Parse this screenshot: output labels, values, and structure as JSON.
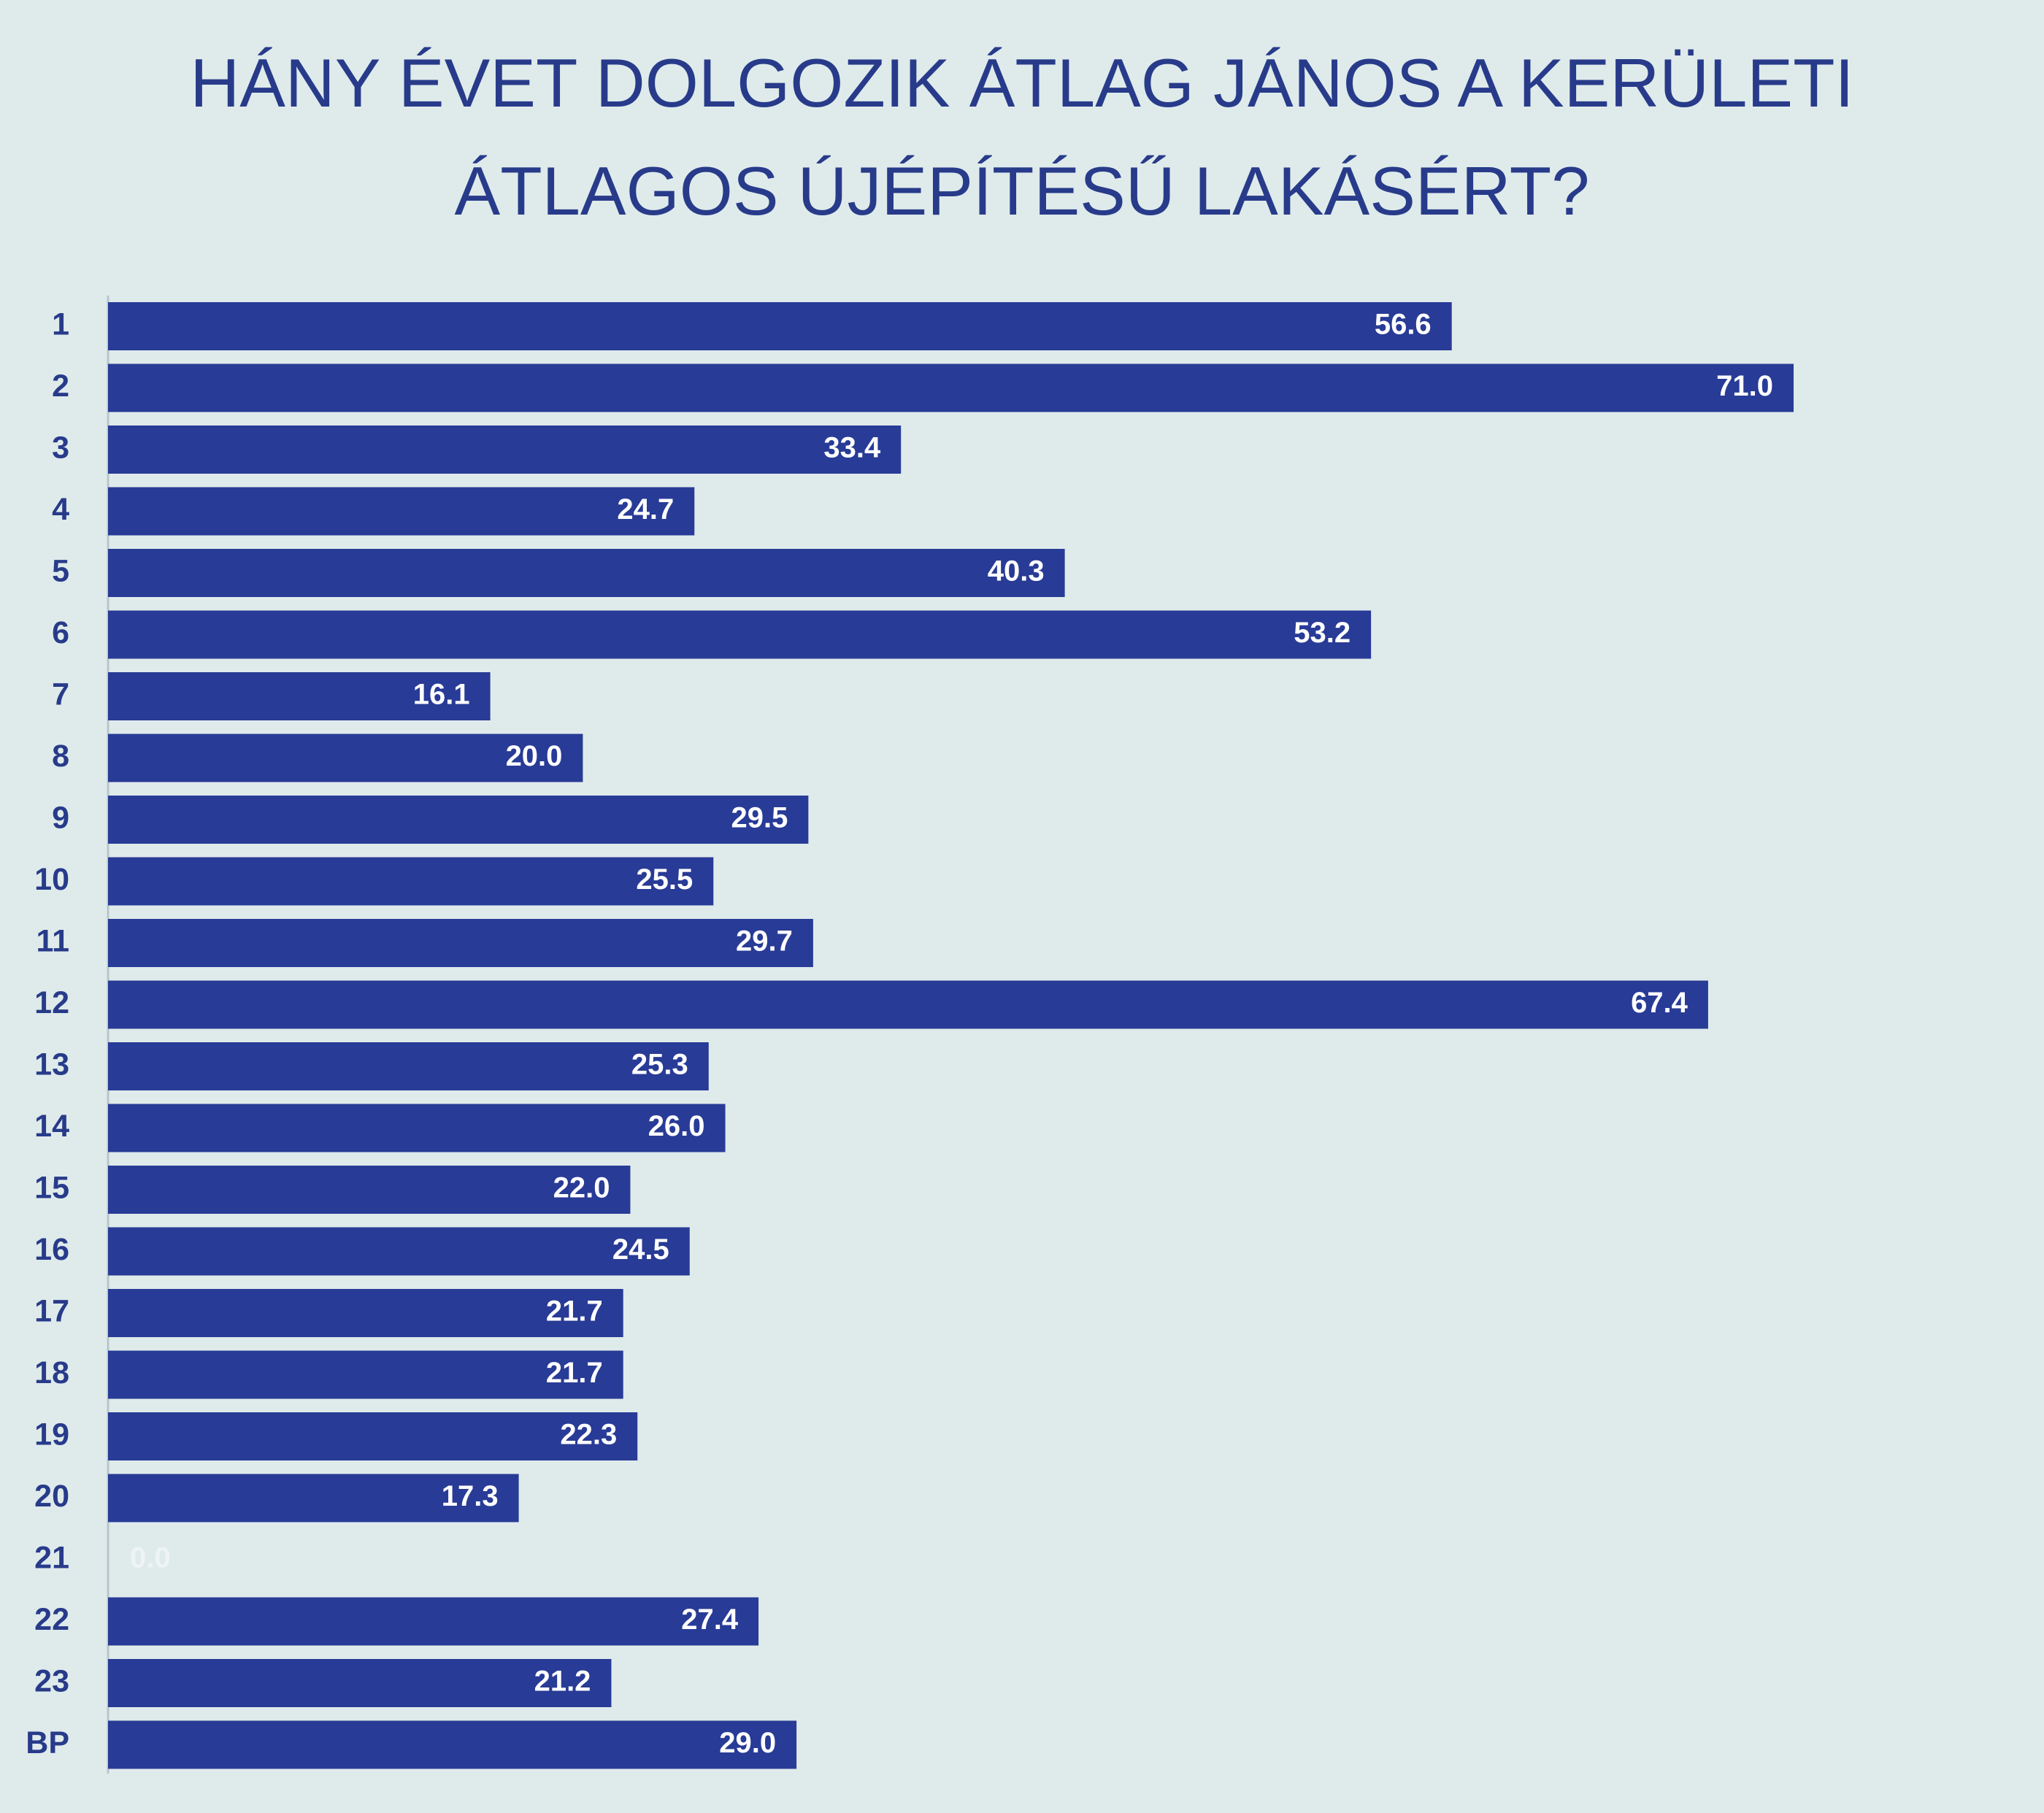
{
  "chart_data": {
    "type": "barh",
    "title": "HÁNY ÉVET DOLGOZIK ÁTLAG JÁNOS A KERÜLETI ÁTLAGOS ÚJÉPÍTÉSŰ LAKÁSÉRT?",
    "categories": [
      "1",
      "2",
      "3",
      "4",
      "5",
      "6",
      "7",
      "8",
      "9",
      "10",
      "11",
      "12",
      "13",
      "14",
      "15",
      "16",
      "17",
      "18",
      "19",
      "20",
      "21",
      "22",
      "23",
      "BP"
    ],
    "values": [
      56.6,
      71.0,
      33.4,
      24.7,
      40.3,
      53.2,
      16.1,
      20.0,
      29.5,
      25.5,
      29.7,
      67.4,
      25.3,
      26.0,
      22.0,
      24.5,
      21.7,
      21.7,
      22.3,
      17.3,
      0.0,
      27.4,
      21.2,
      29.0
    ],
    "value_labels": [
      "56.6",
      "71.0",
      "33.4",
      "24.7",
      "40.3",
      "53.2",
      "16.1",
      "20.0",
      "29.5",
      "25.5",
      "29.7",
      "67.4",
      "25.3",
      "26.0",
      "22.0",
      "24.5",
      "21.7",
      "21.7",
      "22.3",
      "17.3",
      "0.0",
      "27.4",
      "21.2",
      "29.0"
    ],
    "color": "#283b96"
  }
}
